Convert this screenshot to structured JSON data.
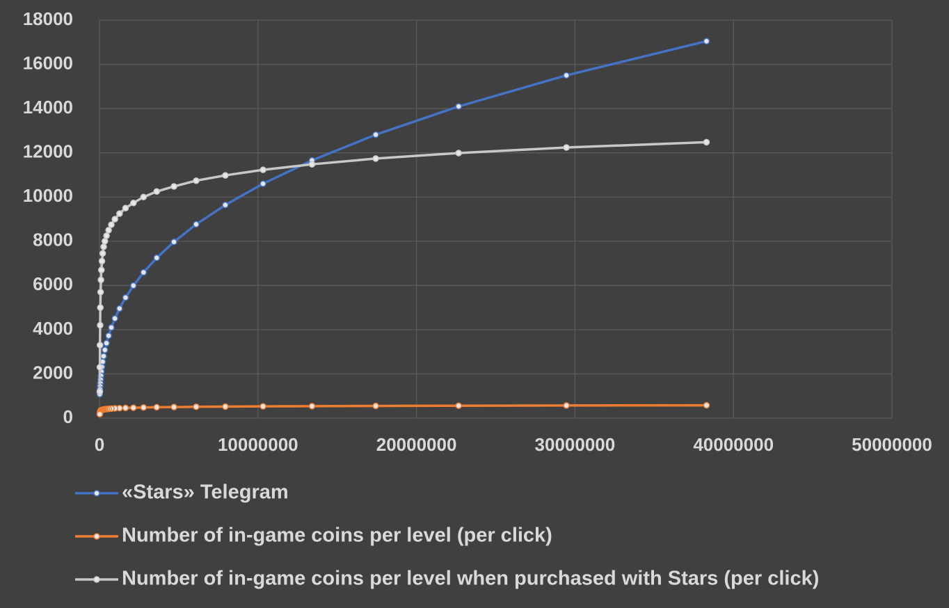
{
  "chart_data": {
    "type": "scatter-line",
    "x": [
      38300000,
      29460000,
      22660000,
      17430000,
      13410000,
      10320000,
      7940000,
      6100000,
      4700000,
      3610000,
      2780000,
      2140000,
      1645000,
      1265000,
      973000,
      748000,
      576000,
      443000,
      341000,
      262000,
      202000,
      155000,
      119000,
      92000,
      71000,
      54000,
      42000,
      32000,
      25000,
      19000
    ],
    "series": [
      {
        "name": "«Stars» Telegram",
        "color": "#4472c4",
        "values": [
          17050,
          15504,
          14098,
          12820,
          11658,
          10601,
          9640,
          8766,
          7971,
          7248,
          6591,
          5994,
          5450,
          4956,
          4507,
          4098,
          3727,
          3389,
          3082,
          2802,
          2548,
          2317,
          2107,
          1916,
          1742,
          1584,
          1441,
          1310,
          1191,
          1083
        ]
      },
      {
        "name": "Number of in-game coins per level (per click)",
        "color": "#ed7d31",
        "values": [
          580,
          570,
          560,
          550,
          540,
          530,
          520,
          510,
          500,
          490,
          480,
          470,
          460,
          450,
          440,
          430,
          420,
          410,
          400,
          390,
          380,
          370,
          360,
          350,
          330,
          310,
          290,
          260,
          220,
          180
        ]
      },
      {
        "name": "Number of in-game coins per level when purchased with Stars (per click)",
        "color": "#c8c8c8",
        "values": [
          12480,
          12240,
          11990,
          11740,
          11480,
          11230,
          10980,
          10740,
          10480,
          10250,
          10000,
          9730,
          9500,
          9250,
          9000,
          8750,
          8500,
          8250,
          8000,
          7750,
          7450,
          7100,
          6700,
          6250,
          5700,
          5000,
          4200,
          3300,
          2300,
          1200
        ]
      }
    ],
    "xlim": [
      0,
      50000000
    ],
    "xticks": [
      0,
      10000000,
      20000000,
      30000000,
      40000000,
      50000000
    ],
    "ylim": [
      0,
      18000
    ],
    "yticks": [
      0,
      2000,
      4000,
      6000,
      8000,
      10000,
      12000,
      14000,
      16000,
      18000
    ],
    "grid": true,
    "legend": "bottom"
  }
}
